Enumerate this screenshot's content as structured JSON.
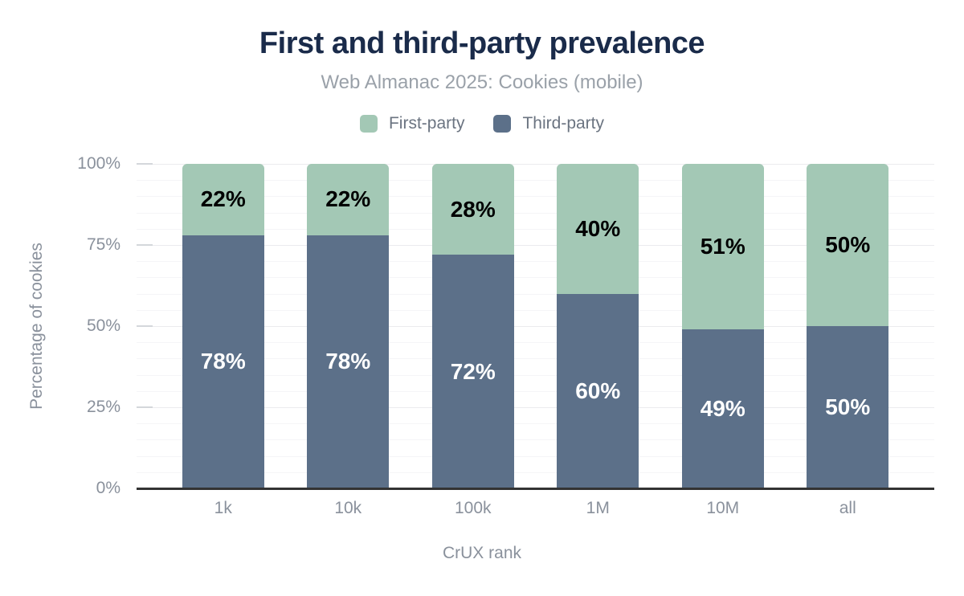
{
  "header": {
    "title": "First and third-party prevalence",
    "subtitle": "Web Almanac 2025: Cookies (mobile)"
  },
  "legend": {
    "items": [
      {
        "label": "First-party",
        "color": "#a3c8b5"
      },
      {
        "label": "Third-party",
        "color": "#5c7089"
      }
    ]
  },
  "chart_data": {
    "type": "bar",
    "stacked": true,
    "title": "First and third-party prevalence",
    "subtitle": "Web Almanac 2025: Cookies (mobile)",
    "categories": [
      "1k",
      "10k",
      "100k",
      "1M",
      "10M",
      "all"
    ],
    "series": [
      {
        "name": "First-party",
        "color": "#a3c8b5",
        "label_color": "#000000",
        "values": [
          22,
          22,
          28,
          40,
          51,
          50
        ]
      },
      {
        "name": "Third-party",
        "color": "#5c7089",
        "label_color": "#ffffff",
        "values": [
          78,
          78,
          72,
          60,
          49,
          50
        ]
      }
    ],
    "xlabel": "CrUX rank",
    "ylabel": "Percentage of cookies",
    "ylim": [
      0,
      100
    ],
    "yticks": [
      "0%",
      "25%",
      "50%",
      "75%",
      "100%"
    ],
    "ytick_values": [
      0,
      25,
      50,
      75,
      100
    ],
    "minor_grid_step": 5,
    "grid": "horizontal",
    "legend_position": "top",
    "value_suffix": "%"
  }
}
